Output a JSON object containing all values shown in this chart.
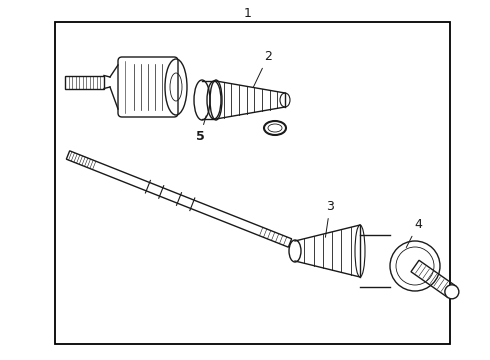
{
  "title": "1",
  "background_color": "#ffffff",
  "border_color": "#000000",
  "line_color": "#1a1a1a",
  "label_2": "2",
  "label_3": "3",
  "label_4": "4",
  "label_5": "5",
  "fig_width": 4.9,
  "fig_height": 3.6,
  "dpi": 100
}
